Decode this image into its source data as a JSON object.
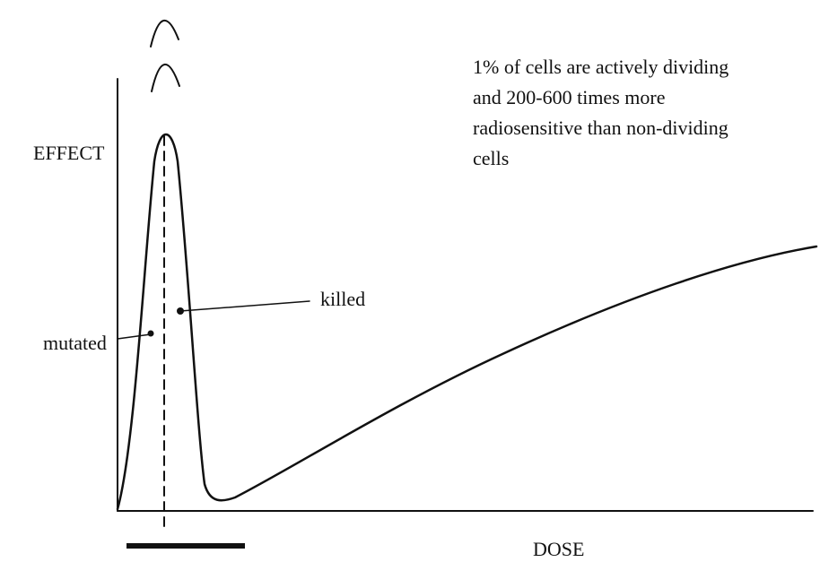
{
  "y_axis_label": "EFFECT",
  "x_axis_label": "DOSE",
  "labels": {
    "mutated": "mutated",
    "killed": "killed"
  },
  "annotation": {
    "lines": [
      "1% of cells are actively dividing",
      "and 200-600 times more",
      "radiosensitive than non-dividing",
      "cells"
    ]
  }
}
